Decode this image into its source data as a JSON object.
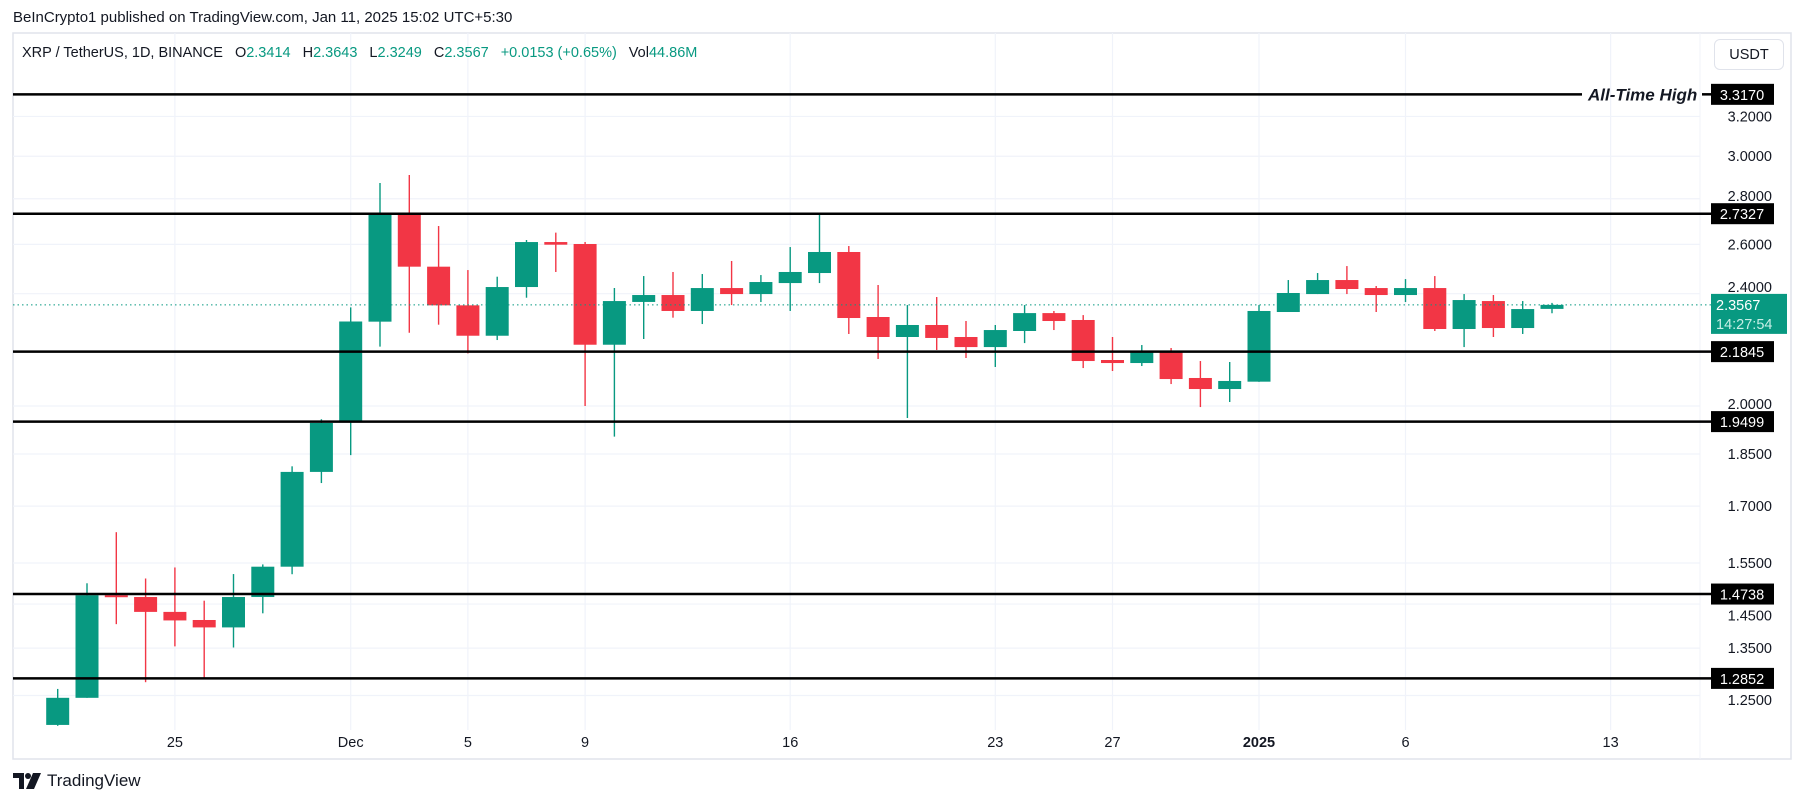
{
  "attribution": "BeInCrypto1 published on TradingView.com, Jan 11, 2025 15:02 UTC+5:30",
  "legend": {
    "symbol": "XRP / TetherUS, 1D, BINANCE",
    "open_label": "O",
    "open": "2.3414",
    "high_label": "H",
    "high": "2.3643",
    "low_label": "L",
    "low": "2.3249",
    "close_label": "C",
    "close": "2.3567",
    "change": "+0.0153 (+0.65%)",
    "vol_label": "Vol",
    "vol": "44.86M"
  },
  "currency_button": "USDT",
  "current_price": {
    "value": "2.3567",
    "countdown": "14:27:54"
  },
  "footer": {
    "brand": "TradingView",
    "logo_icon": "tradingview-logo-icon"
  },
  "colors": {
    "up": "#089981",
    "down": "#F23645",
    "level": "#000000",
    "grid": "#f0f3fa"
  },
  "chart_data": {
    "type": "candlestick",
    "title": "XRP / TetherUS, 1D, BINANCE",
    "y_scale": "log",
    "ylim": [
      1.17,
      3.45
    ],
    "grid": true,
    "y_ticks": [
      "3.2000",
      "3.0000",
      "2.8000",
      "2.6000",
      "2.4000",
      "2.0000",
      "1.8500",
      "1.7000",
      "1.5500",
      "1.4500",
      "1.3500",
      "1.2500"
    ],
    "x_ticks": [
      {
        "label": "25",
        "date": "2024-11-25",
        "bold": false
      },
      {
        "label": "Dec",
        "date": "2024-12-01",
        "bold": false
      },
      {
        "label": "5",
        "date": "2024-12-05",
        "bold": false
      },
      {
        "label": "9",
        "date": "2024-12-09",
        "bold": false
      },
      {
        "label": "16",
        "date": "2024-12-16",
        "bold": false
      },
      {
        "label": "23",
        "date": "2024-12-23",
        "bold": false
      },
      {
        "label": "27",
        "date": "2024-12-27",
        "bold": false
      },
      {
        "label": "2025",
        "date": "2025-01-01",
        "bold": true
      },
      {
        "label": "6",
        "date": "2025-01-06",
        "bold": false
      },
      {
        "label": "13",
        "date": "2025-01-13",
        "bold": false
      }
    ],
    "levels": [
      {
        "price": "3.3170",
        "label": "All-Time High"
      },
      {
        "price": "2.7327",
        "label": ""
      },
      {
        "price": "2.1845",
        "label": ""
      },
      {
        "price": "1.9499",
        "label": ""
      },
      {
        "price": "1.4738",
        "label": ""
      },
      {
        "price": "1.2852",
        "label": ""
      }
    ],
    "candles": [
      {
        "d": "2024-11-21",
        "o": 1.1917,
        "h": 1.2634,
        "l": 1.19,
        "c": 1.2453
      },
      {
        "d": "2024-11-22",
        "o": 1.2453,
        "h": 1.4998,
        "l": 1.2453,
        "c": 1.471
      },
      {
        "d": "2024-11-23",
        "o": 1.471,
        "h": 1.6295,
        "l": 1.4035,
        "c": 1.4667
      },
      {
        "d": "2024-11-24",
        "o": 1.4667,
        "h": 1.5115,
        "l": 1.2773,
        "c": 1.4317
      },
      {
        "d": "2024-11-25",
        "o": 1.4317,
        "h": 1.5388,
        "l": 1.3538,
        "c": 1.412
      },
      {
        "d": "2024-11-26",
        "o": 1.413,
        "h": 1.458,
        "l": 1.2863,
        "c": 1.3961
      },
      {
        "d": "2024-11-27",
        "o": 1.3961,
        "h": 1.5224,
        "l": 1.3513,
        "c": 1.4667
      },
      {
        "d": "2024-11-28",
        "o": 1.4667,
        "h": 1.5464,
        "l": 1.4284,
        "c": 1.5407
      },
      {
        "d": "2024-11-29",
        "o": 1.5407,
        "h": 1.8134,
        "l": 1.522,
        "c": 1.797
      },
      {
        "d": "2024-11-30",
        "o": 1.797,
        "h": 1.9574,
        "l": 1.7648,
        "c": 1.9457
      },
      {
        "d": "2024-12-01",
        "o": 1.95,
        "h": 2.347,
        "l": 1.8465,
        "c": 2.294
      },
      {
        "d": "2024-12-02",
        "o": 2.2934,
        "h": 2.8723,
        "l": 2.2021,
        "c": 2.7297
      },
      {
        "d": "2024-12-03",
        "o": 2.7297,
        "h": 2.9097,
        "l": 2.2526,
        "c": 2.5075
      },
      {
        "d": "2024-12-04",
        "o": 2.5075,
        "h": 2.6786,
        "l": 2.2821,
        "c": 2.355
      },
      {
        "d": "2024-12-05",
        "o": 2.355,
        "h": 2.4938,
        "l": 2.1782,
        "c": 2.2416
      },
      {
        "d": "2024-12-06",
        "o": 2.2416,
        "h": 2.467,
        "l": 2.226,
        "c": 2.426
      },
      {
        "d": "2024-12-07",
        "o": 2.426,
        "h": 2.6185,
        "l": 2.3843,
        "c": 2.6098
      },
      {
        "d": "2024-12-08",
        "o": 2.6098,
        "h": 2.65,
        "l": 2.486,
        "c": 2.5986
      },
      {
        "d": "2024-12-09",
        "o": 2.6015,
        "h": 2.6098,
        "l": 2.0,
        "c": 2.2091
      },
      {
        "d": "2024-12-10",
        "o": 2.2091,
        "h": 2.422,
        "l": 1.9028,
        "c": 2.3714
      },
      {
        "d": "2024-12-11",
        "o": 2.368,
        "h": 2.4696,
        "l": 2.2297,
        "c": 2.3947
      },
      {
        "d": "2024-12-12",
        "o": 2.3947,
        "h": 2.486,
        "l": 2.3083,
        "c": 2.3335
      },
      {
        "d": "2024-12-13",
        "o": 2.3335,
        "h": 2.4778,
        "l": 2.2845,
        "c": 2.422
      },
      {
        "d": "2024-12-14",
        "o": 2.422,
        "h": 2.5308,
        "l": 2.356,
        "c": 2.3985
      },
      {
        "d": "2024-12-15",
        "o": 2.3985,
        "h": 2.4736,
        "l": 2.3676,
        "c": 2.4458
      },
      {
        "d": "2024-12-16",
        "o": 2.4417,
        "h": 2.5887,
        "l": 2.3335,
        "c": 2.486
      },
      {
        "d": "2024-12-17",
        "o": 2.4818,
        "h": 2.7327,
        "l": 2.4417,
        "c": 2.568
      },
      {
        "d": "2024-12-18",
        "o": 2.568,
        "h": 2.593,
        "l": 2.248,
        "c": 2.307
      },
      {
        "d": "2024-12-19",
        "o": 2.3108,
        "h": 2.434,
        "l": 2.1586,
        "c": 2.237
      },
      {
        "d": "2024-12-20",
        "o": 2.237,
        "h": 2.356,
        "l": 1.9613,
        "c": 2.281
      },
      {
        "d": "2024-12-21",
        "o": 2.281,
        "h": 2.387,
        "l": 2.1903,
        "c": 2.2335
      },
      {
        "d": "2024-12-22",
        "o": 2.237,
        "h": 2.2958,
        "l": 2.162,
        "c": 2.2007
      },
      {
        "d": "2024-12-23",
        "o": 2.2007,
        "h": 2.281,
        "l": 2.1307,
        "c": 2.2624
      },
      {
        "d": "2024-12-24",
        "o": 2.2589,
        "h": 2.356,
        "l": 2.215,
        "c": 2.3255
      },
      {
        "d": "2024-12-25",
        "o": 2.3255,
        "h": 2.3335,
        "l": 2.2624,
        "c": 2.2958
      },
      {
        "d": "2024-12-26",
        "o": 2.2996,
        "h": 2.318,
        "l": 2.127,
        "c": 2.1514
      },
      {
        "d": "2024-12-27",
        "o": 2.155,
        "h": 2.237,
        "l": 2.1168,
        "c": 2.1444
      },
      {
        "d": "2024-12-28",
        "o": 2.1444,
        "h": 2.208,
        "l": 2.134,
        "c": 2.1829
      },
      {
        "d": "2024-12-29",
        "o": 2.1829,
        "h": 2.1974,
        "l": 2.0725,
        "c": 2.0894
      },
      {
        "d": "2024-12-30",
        "o": 2.093,
        "h": 2.1514,
        "l": 1.9965,
        "c": 2.0558
      },
      {
        "d": "2024-12-31",
        "o": 2.0558,
        "h": 2.148,
        "l": 2.013,
        "c": 2.0829
      },
      {
        "d": "2025-01-01",
        "o": 2.0805,
        "h": 2.356,
        "l": 2.08,
        "c": 2.3335
      },
      {
        "d": "2025-01-02",
        "o": 2.3296,
        "h": 2.4537,
        "l": 2.3296,
        "c": 2.4026
      },
      {
        "d": "2025-01-03",
        "o": 2.3985,
        "h": 2.4818,
        "l": 2.3985,
        "c": 2.4537
      },
      {
        "d": "2025-01-04",
        "o": 2.4537,
        "h": 2.51,
        "l": 2.3985,
        "c": 2.4182
      },
      {
        "d": "2025-01-05",
        "o": 2.422,
        "h": 2.43,
        "l": 2.3296,
        "c": 2.3947
      },
      {
        "d": "2025-01-06",
        "o": 2.3947,
        "h": 2.4575,
        "l": 2.3676,
        "c": 2.422
      },
      {
        "d": "2025-01-07",
        "o": 2.422,
        "h": 2.4696,
        "l": 2.2589,
        "c": 2.2662
      },
      {
        "d": "2025-01-08",
        "o": 2.2662,
        "h": 2.3985,
        "l": 2.2007,
        "c": 2.3753
      },
      {
        "d": "2025-01-09",
        "o": 2.3714,
        "h": 2.3947,
        "l": 2.237,
        "c": 2.2698
      },
      {
        "d": "2025-01-10",
        "o": 2.2698,
        "h": 2.3714,
        "l": 2.248,
        "c": 2.3408
      },
      {
        "d": "2025-01-11",
        "o": 2.3414,
        "h": 2.3643,
        "l": 2.3249,
        "c": 2.3567
      }
    ]
  }
}
